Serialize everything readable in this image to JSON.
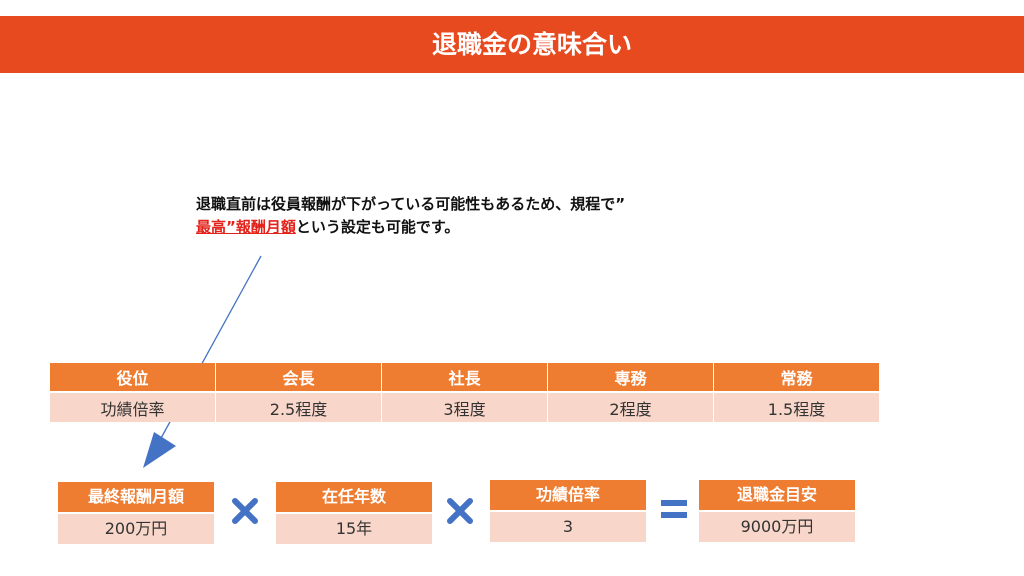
{
  "title": "退職金の意味合い",
  "note": {
    "line1": "退職直前は役員報酬が下がっている可能性もあるため、規程で”",
    "emphasis": "最高”報酬月額",
    "line2_rest": "という設定も可能です。"
  },
  "role_table": {
    "header": [
      "役位",
      "会長",
      "社長",
      "専務",
      "常務"
    ],
    "row": [
      "功績倍率",
      "2.5程度",
      "3程度",
      "2程度",
      "1.5程度"
    ]
  },
  "formula": {
    "items": [
      {
        "label": "最終報酬月額",
        "value": "200万円"
      },
      {
        "label": "在任年数",
        "value": "15年"
      },
      {
        "label": "功績倍率",
        "value": "3"
      },
      {
        "label": "退職金目安",
        "value": "9000万円"
      }
    ],
    "operators": [
      "multiply-icon",
      "multiply-icon",
      "equals-icon"
    ]
  },
  "colors": {
    "title_bar": "#e84a20",
    "header_cell": "#ee7d32",
    "value_cell": "#f8d6c9",
    "operator": "#4472c4",
    "emphasis": "#e3231b",
    "arrow": "#4472c4"
  }
}
